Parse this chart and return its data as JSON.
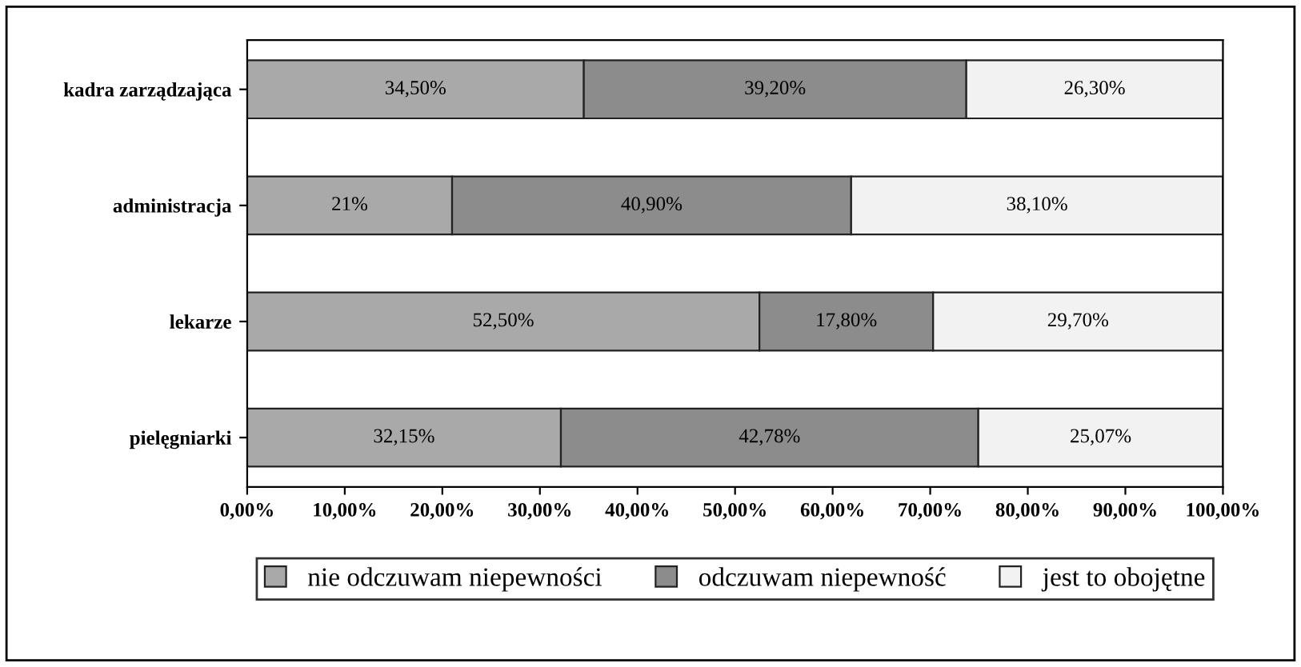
{
  "chart_data": {
    "type": "bar",
    "orientation": "horizontal",
    "stacked": true,
    "categories": [
      "kadra zarządzająca",
      "administracja",
      "lekarze",
      "pielęgniarki"
    ],
    "series": [
      {
        "name": "nie odczuwam niepewności",
        "color": "#a9a9a9",
        "values": [
          34.5,
          21,
          52.5,
          32.15
        ],
        "value_labels": [
          "34,50%",
          "21%",
          "52,50%",
          "32,15%"
        ]
      },
      {
        "name": "odczuwam niepewność",
        "color": "#8c8c8c",
        "values": [
          39.2,
          40.9,
          17.8,
          42.78
        ],
        "value_labels": [
          "39,20%",
          "40,90%",
          "17,80%",
          "42,78%"
        ]
      },
      {
        "name": "jest to obojętne",
        "color": "#f2f2f2",
        "values": [
          26.3,
          38.1,
          29.7,
          25.07
        ],
        "value_labels": [
          "26,30%",
          "38,10%",
          "29,70%",
          "25,07%"
        ]
      }
    ],
    "xlim": [
      0,
      100
    ],
    "xticks": [
      {
        "value": 0,
        "label": "0,00%"
      },
      {
        "value": 10,
        "label": "10,00%"
      },
      {
        "value": 20,
        "label": "20,00%"
      },
      {
        "value": 30,
        "label": "30,00%"
      },
      {
        "value": 40,
        "label": "40,00%"
      },
      {
        "value": 50,
        "label": "50,00%"
      },
      {
        "value": 60,
        "label": "60,00%"
      },
      {
        "value": 70,
        "label": "70,00%"
      },
      {
        "value": 80,
        "label": "80,00%"
      },
      {
        "value": 90,
        "label": "90,00%"
      },
      {
        "value": 100,
        "label": "100,00%"
      }
    ],
    "legend": "bottom"
  }
}
